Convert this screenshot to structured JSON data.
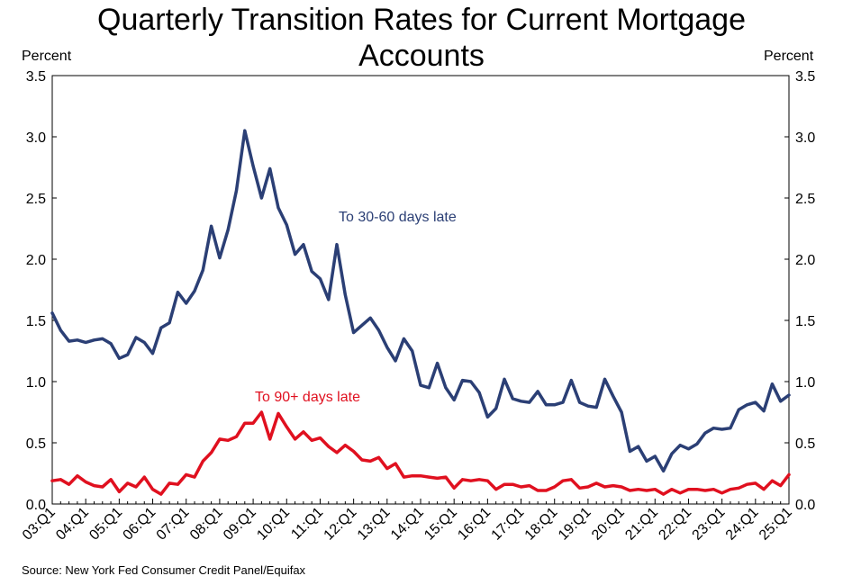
{
  "title_line1": "Quarterly Transition Rates for Current Mortgage",
  "title_line2": "Accounts",
  "left_axis_unit": "Percent",
  "right_axis_unit": "Percent",
  "source": "Source: New York Fed Consumer Credit Panel/Equifax",
  "colors": {
    "series_30_60": "#2b3f75",
    "series_90": "#e0101f"
  },
  "chart_data": {
    "type": "line",
    "ylim": [
      0,
      3.5
    ],
    "yticks": [
      "0.0",
      "0.5",
      "1.0",
      "1.5",
      "2.0",
      "2.5",
      "3.0",
      "3.5"
    ],
    "xtick_labels": [
      "03:Q1",
      "04:Q1",
      "05:Q1",
      "06:Q1",
      "07:Q1",
      "08:Q1",
      "09:Q1",
      "10:Q1",
      "11:Q1",
      "12:Q1",
      "13:Q1",
      "14:Q1",
      "15:Q1",
      "16:Q1",
      "17:Q1",
      "18:Q1",
      "19:Q1",
      "20:Q1",
      "21:Q1",
      "22:Q1",
      "23:Q1",
      "24:Q1",
      "25:Q1"
    ],
    "x_start": "2003:Q1",
    "x_end": "2025:Q1",
    "grid": false,
    "series": [
      {
        "name": "To 30-60 days late",
        "values": [
          1.56,
          1.42,
          1.33,
          1.34,
          1.32,
          1.34,
          1.35,
          1.31,
          1.19,
          1.22,
          1.36,
          1.32,
          1.23,
          1.44,
          1.48,
          1.73,
          1.64,
          1.74,
          1.91,
          2.27,
          2.01,
          2.24,
          2.56,
          3.05,
          2.76,
          2.5,
          2.74,
          2.42,
          2.28,
          2.04,
          2.12,
          1.9,
          1.84,
          1.67,
          2.12,
          1.71,
          1.4,
          1.46,
          1.52,
          1.42,
          1.28,
          1.17,
          1.35,
          1.25,
          0.97,
          0.95,
          1.15,
          0.95,
          0.85,
          1.01,
          1.0,
          0.91,
          0.71,
          0.78,
          1.02,
          0.86,
          0.84,
          0.83,
          0.92,
          0.81,
          0.81,
          0.83,
          1.01,
          0.83,
          0.8,
          0.79,
          1.02,
          0.88,
          0.75,
          0.43,
          0.47,
          0.35,
          0.39,
          0.27,
          0.41,
          0.48,
          0.45,
          0.49,
          0.58,
          0.62,
          0.61,
          0.62,
          0.77,
          0.81,
          0.83,
          0.76,
          0.98,
          0.84,
          0.89
        ]
      },
      {
        "name": "To 90+ days late",
        "values": [
          0.19,
          0.2,
          0.16,
          0.23,
          0.18,
          0.15,
          0.14,
          0.2,
          0.1,
          0.17,
          0.14,
          0.22,
          0.12,
          0.08,
          0.17,
          0.16,
          0.24,
          0.22,
          0.35,
          0.42,
          0.53,
          0.52,
          0.55,
          0.66,
          0.66,
          0.75,
          0.53,
          0.74,
          0.63,
          0.53,
          0.59,
          0.52,
          0.54,
          0.47,
          0.42,
          0.48,
          0.43,
          0.36,
          0.35,
          0.38,
          0.29,
          0.33,
          0.22,
          0.23,
          0.23,
          0.22,
          0.21,
          0.22,
          0.13,
          0.2,
          0.19,
          0.2,
          0.19,
          0.12,
          0.16,
          0.16,
          0.14,
          0.15,
          0.11,
          0.11,
          0.14,
          0.19,
          0.2,
          0.13,
          0.14,
          0.17,
          0.14,
          0.15,
          0.14,
          0.11,
          0.12,
          0.11,
          0.12,
          0.08,
          0.12,
          0.09,
          0.12,
          0.12,
          0.11,
          0.12,
          0.09,
          0.12,
          0.13,
          0.16,
          0.17,
          0.12,
          0.19,
          0.15,
          0.24
        ]
      }
    ]
  }
}
